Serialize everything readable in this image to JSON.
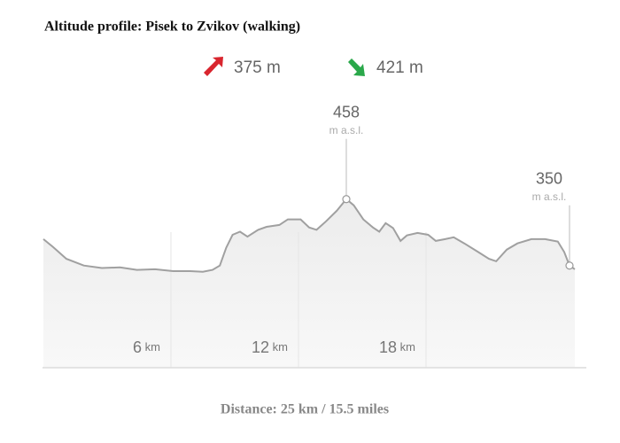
{
  "chart_data": {
    "type": "area",
    "title": "Altitude profile: Pisek to Zvikov (walking)",
    "ascent": "375 m",
    "descent": "421 m",
    "footer": "Distance: 25 km / 15.5 miles",
    "x": [
      0,
      0.46,
      1.08,
      1.9,
      2.75,
      3.6,
      4.4,
      5.25,
      6.1,
      6.9,
      7.5,
      7.96,
      8.3,
      8.6,
      8.9,
      9.25,
      9.6,
      10.1,
      10.5,
      11.1,
      11.5,
      12.1,
      12.5,
      12.85,
      13.3,
      13.8,
      14.25,
      14.6,
      15.05,
      15.5,
      15.8,
      16.1,
      16.45,
      16.8,
      17.1,
      17.6,
      18.1,
      18.46,
      18.9,
      19.3,
      19.8,
      20.45,
      20.96,
      21.3,
      21.8,
      22.3,
      22.96,
      23.6,
      24.2,
      24.5,
      24.75,
      25
    ],
    "values": [
      393,
      380,
      361,
      350,
      346,
      347,
      343,
      344,
      341,
      341,
      340,
      343,
      350,
      379,
      400,
      405,
      397,
      408,
      413,
      416,
      425,
      425,
      412,
      408,
      422,
      439,
      458,
      448,
      425,
      412,
      405,
      419,
      411,
      390,
      399,
      403,
      400,
      390,
      393,
      396,
      386,
      372,
      361,
      357,
      376,
      386,
      393,
      393,
      389,
      372,
      350,
      344
    ],
    "color": "#a0a0a0",
    "xlim": [
      0,
      25
    ],
    "ylim": [
      184,
      484
    ],
    "xticks": [
      {
        "value": 6,
        "label": "6 km"
      },
      {
        "value": 12,
        "label": "12 km"
      },
      {
        "value": 18,
        "label": "18 km"
      }
    ],
    "grid": true,
    "annotations": [
      {
        "x": 14.25,
        "value": 458,
        "unit": "m a.s.l."
      },
      {
        "x": 24.75,
        "value": 350,
        "unit": "m a.s.l."
      }
    ]
  }
}
